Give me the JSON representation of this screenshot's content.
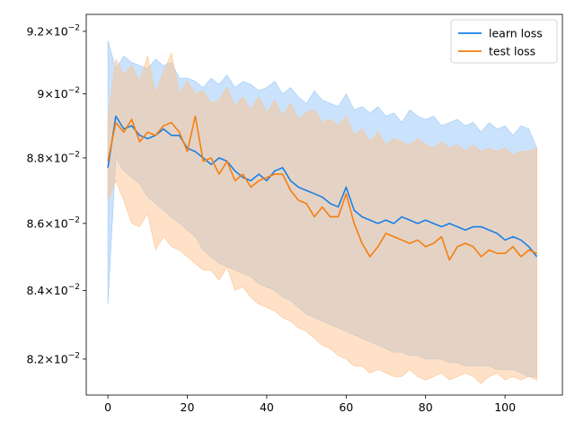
{
  "chart_data": {
    "type": "line",
    "title": "",
    "xlabel": "",
    "ylabel": "",
    "y_scale": "log",
    "xlim": [
      -5.45,
      114.45
    ],
    "ylim": [
      0.08097,
      0.09255
    ],
    "grid": false,
    "legend_position": "top-right",
    "x_ticks": [
      {
        "value": 0,
        "label": "0"
      },
      {
        "value": 20,
        "label": "20"
      },
      {
        "value": 40,
        "label": "40"
      },
      {
        "value": 60,
        "label": "60"
      },
      {
        "value": 80,
        "label": "80"
      },
      {
        "value": 100,
        "label": "100"
      }
    ],
    "y_ticks": [
      {
        "value": 0.082,
        "mantissa": "8.2",
        "base": "10",
        "exp": "−2"
      },
      {
        "value": 0.084,
        "mantissa": "8.4",
        "base": "10",
        "exp": "−2"
      },
      {
        "value": 0.086,
        "mantissa": "8.6",
        "base": "10",
        "exp": "−2"
      },
      {
        "value": 0.088,
        "mantissa": "8.8",
        "base": "10",
        "exp": "−2"
      },
      {
        "value": 0.09,
        "mantissa": "9",
        "base": "10",
        "exp": "−2"
      },
      {
        "value": 0.092,
        "mantissa": "9.2",
        "base": "10",
        "exp": "−2"
      }
    ],
    "x": [
      0,
      2,
      4,
      6,
      8,
      10,
      12,
      14,
      16,
      18,
      20,
      22,
      24,
      26,
      28,
      30,
      32,
      34,
      36,
      38,
      40,
      42,
      44,
      46,
      48,
      50,
      52,
      54,
      56,
      58,
      60,
      62,
      64,
      66,
      68,
      70,
      72,
      74,
      76,
      78,
      80,
      82,
      84,
      86,
      88,
      90,
      92,
      94,
      96,
      98,
      100,
      102,
      104,
      106,
      108
    ],
    "series": [
      {
        "name": "learn loss",
        "color": "#1f77b4",
        "line_color": "#1a80e6",
        "band_color": "#9ecbf7",
        "values": [
          0.0877,
          0.0893,
          0.0889,
          0.089,
          0.0887,
          0.0886,
          0.0887,
          0.0889,
          0.0887,
          0.0887,
          0.0883,
          0.0882,
          0.088,
          0.0878,
          0.088,
          0.0879,
          0.0876,
          0.0874,
          0.0873,
          0.0875,
          0.0873,
          0.0876,
          0.0877,
          0.0873,
          0.0871,
          0.087,
          0.0869,
          0.0868,
          0.0866,
          0.0865,
          0.0871,
          0.0864,
          0.0862,
          0.0861,
          0.086,
          0.0861,
          0.086,
          0.0862,
          0.0861,
          0.086,
          0.0861,
          0.086,
          0.0859,
          0.086,
          0.0859,
          0.0858,
          0.0859,
          0.0859,
          0.0858,
          0.0857,
          0.0855,
          0.0856,
          0.0855,
          0.0853,
          0.085
        ],
        "upper": [
          0.0917,
          0.0908,
          0.0912,
          0.091,
          0.0909,
          0.0908,
          0.0911,
          0.0909,
          0.091,
          0.0905,
          0.0905,
          0.0904,
          0.0902,
          0.0905,
          0.0903,
          0.0906,
          0.0902,
          0.0904,
          0.0903,
          0.0901,
          0.0902,
          0.0904,
          0.09,
          0.0902,
          0.0899,
          0.0897,
          0.0901,
          0.0898,
          0.0897,
          0.0896,
          0.09,
          0.0895,
          0.0896,
          0.0894,
          0.0896,
          0.0893,
          0.0894,
          0.0891,
          0.0895,
          0.0893,
          0.0892,
          0.0893,
          0.089,
          0.0891,
          0.0892,
          0.089,
          0.0891,
          0.0888,
          0.0891,
          0.0889,
          0.089,
          0.0887,
          0.089,
          0.0889,
          0.0883
        ],
        "lower": [
          0.0836,
          0.088,
          0.0876,
          0.0874,
          0.0872,
          0.0868,
          0.0866,
          0.0864,
          0.0862,
          0.086,
          0.0858,
          0.0856,
          0.0852,
          0.085,
          0.0848,
          0.0847,
          0.0846,
          0.0845,
          0.0844,
          0.0842,
          0.0841,
          0.084,
          0.0838,
          0.0837,
          0.0835,
          0.0833,
          0.0832,
          0.0831,
          0.083,
          0.0829,
          0.0828,
          0.0827,
          0.0826,
          0.0825,
          0.0824,
          0.0823,
          0.0822,
          0.0822,
          0.0821,
          0.0821,
          0.082,
          0.082,
          0.082,
          0.0819,
          0.0819,
          0.0818,
          0.0818,
          0.0818,
          0.0818,
          0.0817,
          0.0817,
          0.0817,
          0.0816,
          0.0815,
          0.0815
        ]
      },
      {
        "name": "test loss",
        "color": "#ff7f0e",
        "line_color": "#f57f0e",
        "band_color": "#fdc48f",
        "values": [
          0.0879,
          0.0891,
          0.0888,
          0.0892,
          0.0885,
          0.0888,
          0.0887,
          0.089,
          0.0891,
          0.0888,
          0.0882,
          0.0893,
          0.0879,
          0.088,
          0.0875,
          0.0879,
          0.0873,
          0.0875,
          0.0871,
          0.0873,
          0.0874,
          0.0875,
          0.0875,
          0.087,
          0.0867,
          0.0866,
          0.0862,
          0.0865,
          0.0862,
          0.0862,
          0.0869,
          0.086,
          0.0854,
          0.085,
          0.0853,
          0.0857,
          0.0856,
          0.0855,
          0.0854,
          0.0855,
          0.0853,
          0.0854,
          0.0856,
          0.0849,
          0.0853,
          0.0854,
          0.0853,
          0.085,
          0.0852,
          0.0851,
          0.0851,
          0.0853,
          0.085,
          0.0852,
          0.0851
        ],
        "upper": [
          0.0892,
          0.0911,
          0.0906,
          0.0909,
          0.0904,
          0.0912,
          0.09,
          0.0907,
          0.0913,
          0.09,
          0.0904,
          0.09,
          0.0901,
          0.0897,
          0.0898,
          0.0902,
          0.0896,
          0.0899,
          0.0895,
          0.0899,
          0.0894,
          0.0898,
          0.0893,
          0.0897,
          0.0892,
          0.0894,
          0.0895,
          0.0891,
          0.0892,
          0.089,
          0.0893,
          0.0887,
          0.0889,
          0.0885,
          0.0888,
          0.0884,
          0.0886,
          0.0885,
          0.0884,
          0.0886,
          0.0884,
          0.0883,
          0.0885,
          0.0883,
          0.0884,
          0.0882,
          0.0884,
          0.0882,
          0.0883,
          0.0882,
          0.0883,
          0.0881,
          0.0882,
          0.0882,
          0.0883
        ],
        "lower": [
          0.0867,
          0.0873,
          0.0867,
          0.086,
          0.0859,
          0.0863,
          0.0852,
          0.0856,
          0.0853,
          0.0852,
          0.085,
          0.0848,
          0.0846,
          0.0846,
          0.0843,
          0.0847,
          0.084,
          0.0841,
          0.0838,
          0.0836,
          0.0835,
          0.0834,
          0.0832,
          0.0831,
          0.0829,
          0.0828,
          0.0826,
          0.0824,
          0.0823,
          0.0821,
          0.082,
          0.0818,
          0.0818,
          0.0816,
          0.0817,
          0.0816,
          0.0815,
          0.0815,
          0.0817,
          0.0815,
          0.0814,
          0.0815,
          0.0816,
          0.0814,
          0.0815,
          0.0816,
          0.0815,
          0.0813,
          0.0815,
          0.0816,
          0.0814,
          0.0815,
          0.0814,
          0.0815,
          0.0814
        ]
      }
    ]
  }
}
